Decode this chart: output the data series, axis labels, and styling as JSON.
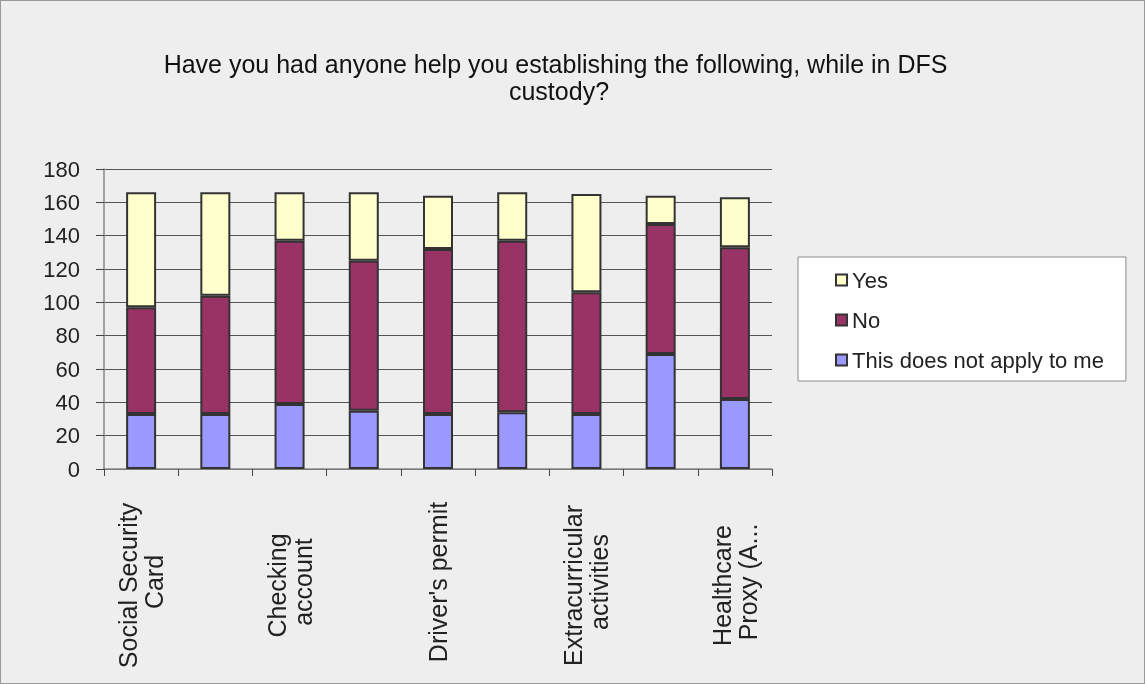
{
  "chart_data": {
    "type": "bar",
    "title": "Have you had anyone help you establishing the following, while in DFS custody?",
    "categories": [
      "Social Security Card",
      null,
      "Checking account",
      null,
      "Driver's permit",
      null,
      "Extracurricular activities",
      null,
      "Healthcare Proxy (A..."
    ],
    "stacked": true,
    "series": [
      {
        "name": "This does not apply to me",
        "color": "#9999ff",
        "values": [
          33,
          33,
          39,
          35,
          33,
          34,
          33,
          69,
          42
        ]
      },
      {
        "name": "No",
        "color": "#993366",
        "values": [
          64,
          71,
          98,
          90,
          99,
          103,
          73,
          78,
          91
        ]
      },
      {
        "name": "Yes",
        "color": "#ffffcc",
        "values": [
          69,
          62,
          29,
          41,
          32,
          29,
          59,
          17,
          30
        ]
      }
    ],
    "ylim": [
      0,
      180
    ],
    "yticks": [
      0,
      20,
      40,
      60,
      80,
      100,
      120,
      140,
      160,
      180
    ],
    "grid": "y",
    "legend": "right"
  }
}
